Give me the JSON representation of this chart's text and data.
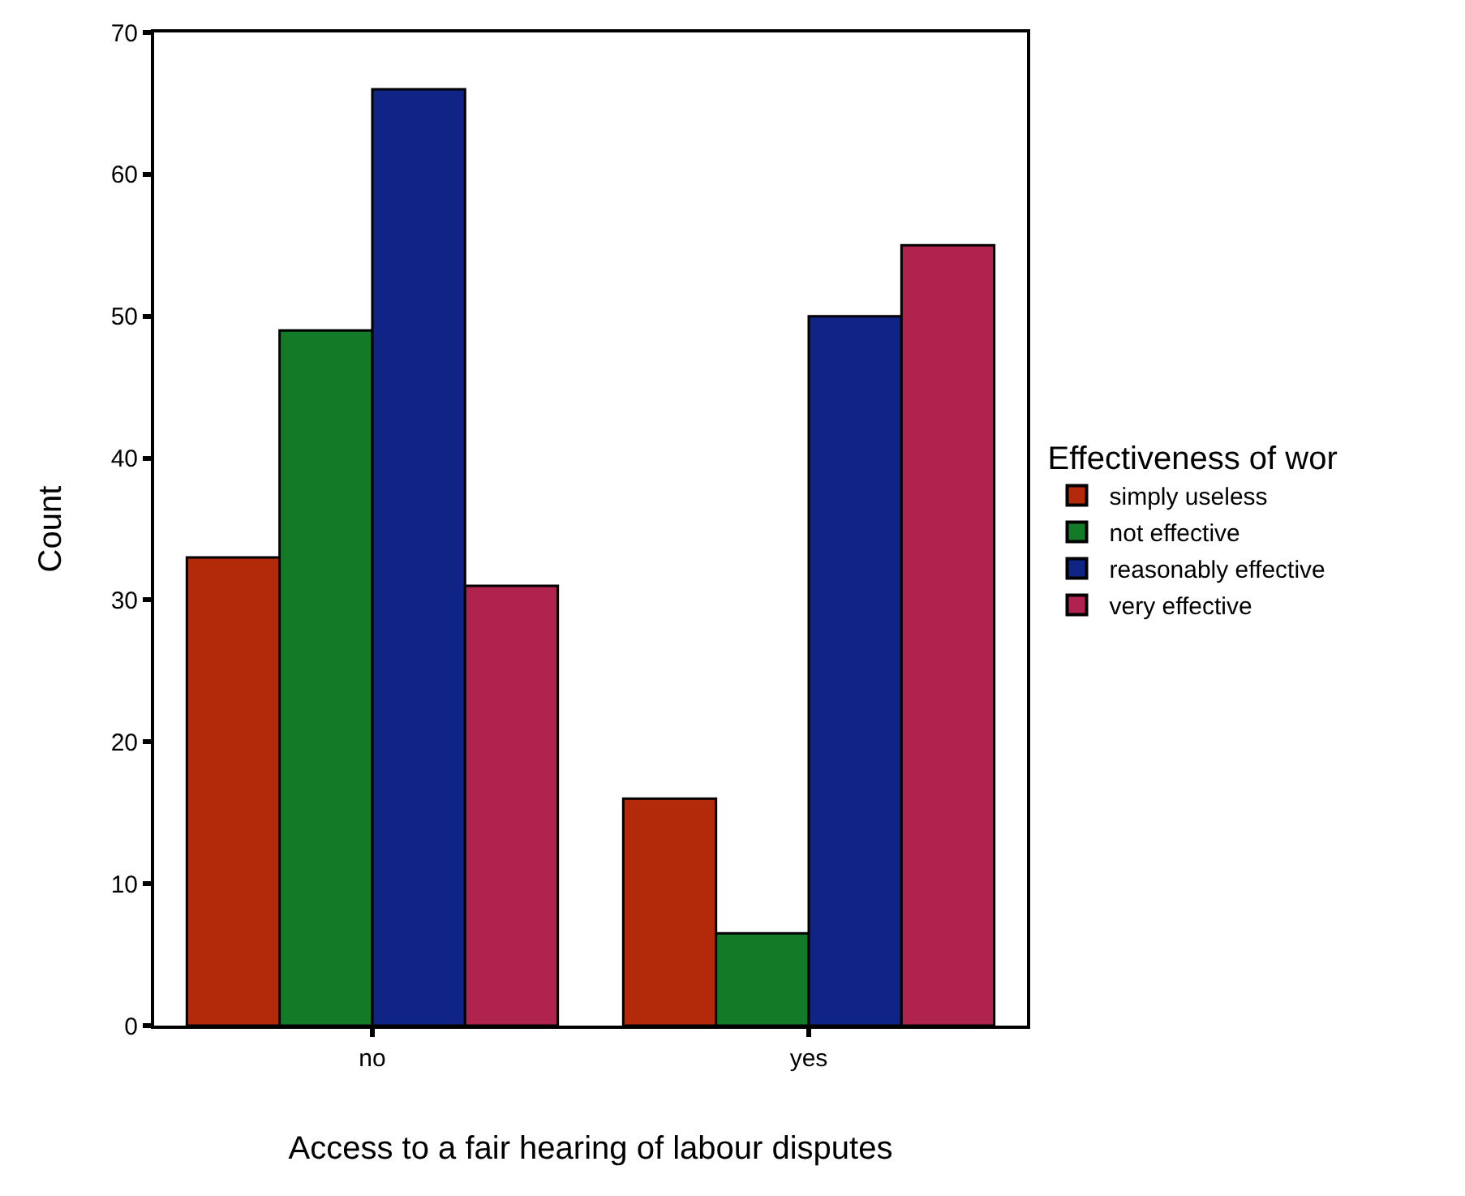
{
  "chart_data": {
    "type": "bar",
    "xlabel": "Access to a fair hearing of labour disputes",
    "ylabel": "Count",
    "legend_title": "Effectiveness of wor",
    "categories": [
      "no",
      "yes"
    ],
    "series": [
      {
        "name": "simply useless",
        "color": "#b22a0a",
        "values": [
          33,
          16
        ]
      },
      {
        "name": "not effective",
        "color": "#137a28",
        "values": [
          49,
          6.5
        ]
      },
      {
        "name": "reasonably effective",
        "color": "#0f2485",
        "values": [
          66,
          50
        ]
      },
      {
        "name": "very effective",
        "color": "#b0234f",
        "values": [
          31,
          55
        ]
      }
    ],
    "ylim": [
      0,
      70
    ],
    "yticks": [
      0,
      10,
      20,
      30,
      40,
      50,
      60,
      70
    ],
    "legend": "right"
  }
}
